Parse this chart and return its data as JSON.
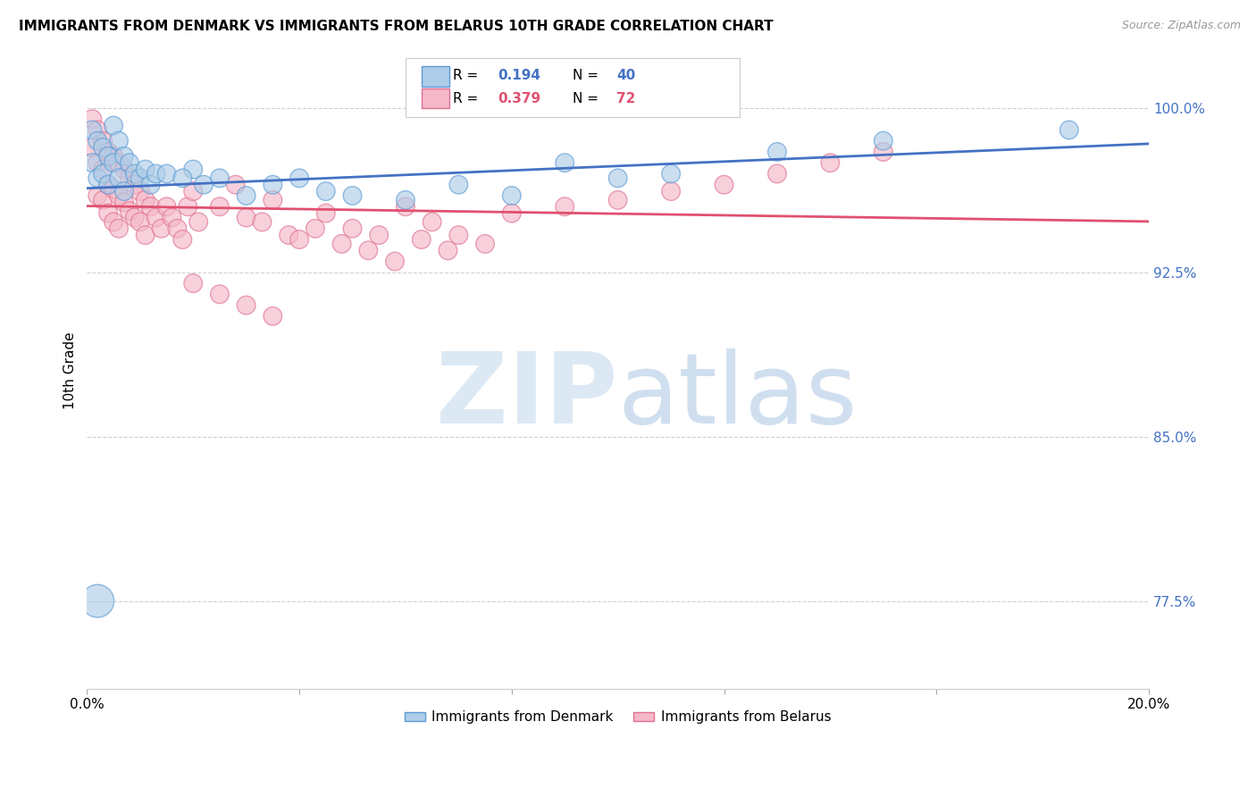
{
  "title": "IMMIGRANTS FROM DENMARK VS IMMIGRANTS FROM BELARUS 10TH GRADE CORRELATION CHART",
  "source": "Source: ZipAtlas.com",
  "ylabel": "10th Grade",
  "ytick_labels": [
    "77.5%",
    "85.0%",
    "92.5%",
    "100.0%"
  ],
  "ytick_values": [
    0.775,
    0.85,
    0.925,
    1.0
  ],
  "xlim": [
    0.0,
    0.2
  ],
  "ylim": [
    0.735,
    1.025
  ],
  "denmark_color": "#aecde8",
  "belarus_color": "#f4b8c8",
  "denmark_edge_color": "#5b9bd5",
  "belarus_edge_color": "#e07090",
  "denmark_line_color": "#4472c4",
  "belarus_line_color": "#e05070",
  "denmark_R": 0.194,
  "denmark_N": 40,
  "belarus_R": 0.379,
  "belarus_N": 72,
  "watermark_zip_color": "#c8ddf0",
  "watermark_atlas_color": "#b0cce0",
  "background_color": "#ffffff",
  "grid_color": "#d0d0d0",
  "legend_box_color": "#ffffff",
  "legend_box_edge": "#cccccc",
  "dk_color_legend": "#aecde8",
  "bl_color_legend": "#f4b8c8",
  "right_ytick_color": "#4472c4"
}
